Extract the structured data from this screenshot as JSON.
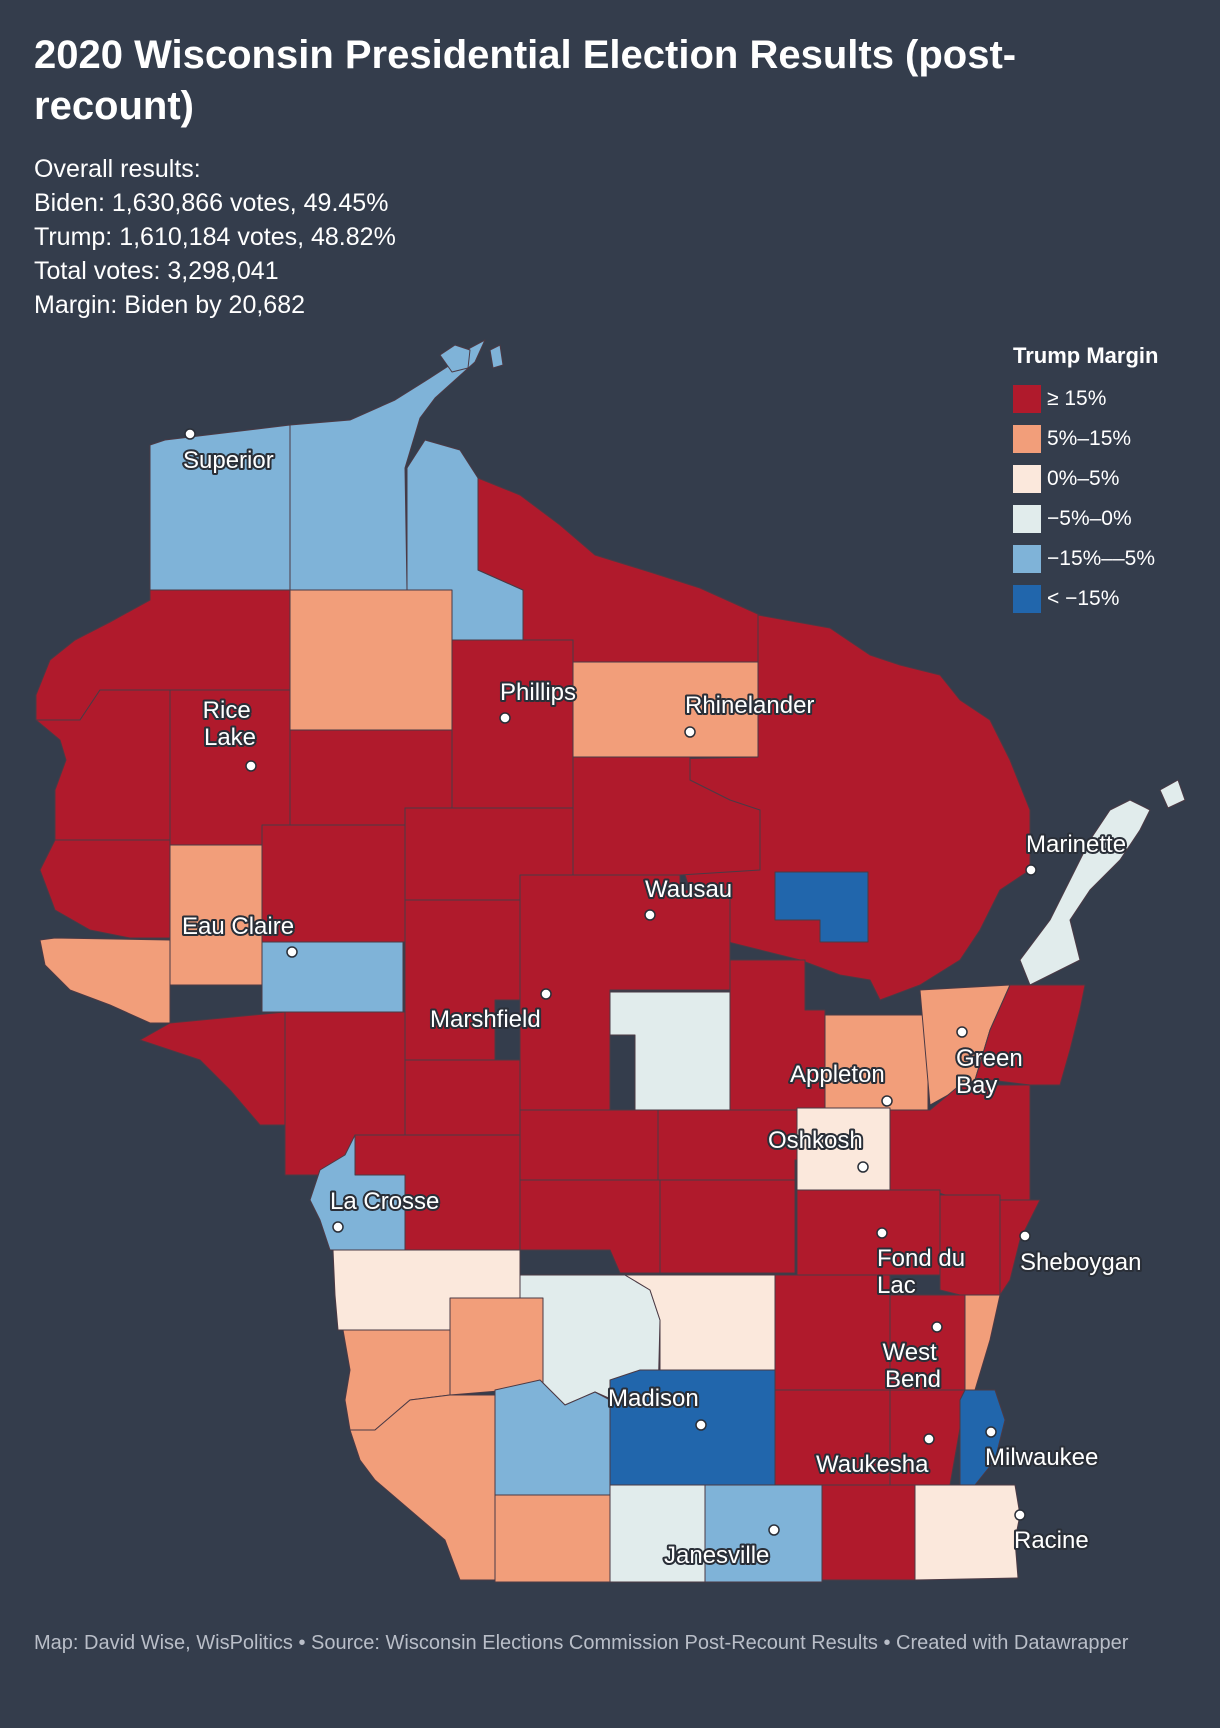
{
  "header": {
    "title": "2020 Wisconsin Presidential Election Results (post-recount)",
    "summary": [
      "Overall results:",
      "Biden: 1,630,866 votes, 49.45%",
      "Trump: 1,610,184 votes, 48.82%",
      "Total votes: 3,298,041",
      "Margin: Biden by 20,682"
    ]
  },
  "legend": {
    "title": "Trump Margin",
    "items": [
      {
        "label": "≥ 15%",
        "color": "#b01a2c"
      },
      {
        "label": "5%–15%",
        "color": "#f29e7a"
      },
      {
        "label": "0%–5%",
        "color": "#fbe8dc"
      },
      {
        "label": "−5%–0%",
        "color": "#e1ecec"
      },
      {
        "label": "−15%––5%",
        "color": "#7fb3d8"
      },
      {
        "label": "< −15%",
        "color": "#2166ac"
      }
    ]
  },
  "cities": [
    "Superior",
    "Rice Lake",
    "Phillips",
    "Rhinelander",
    "Marinette",
    "Wausau",
    "Eau Claire",
    "Marshfield",
    "Appleton",
    "Green Bay",
    "Oshkosh",
    "La Crosse",
    "Fond du Lac",
    "Sheboygan",
    "West Bend",
    "Madison",
    "Waukesha",
    "Milwaukee",
    "Racine",
    "Janesville"
  ],
  "footer": "Map: David Wise, WisPolitics • Source: Wisconsin Elections Commission Post-Recount Results • Created with Datawrapper"
}
